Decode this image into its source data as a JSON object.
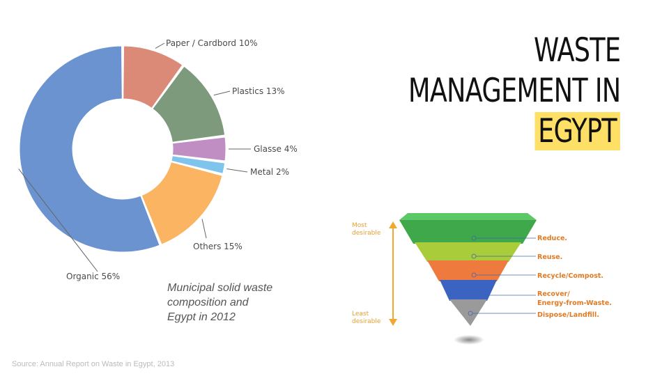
{
  "title": {
    "line1": "WASTE",
    "line2": "MANAGEMENT IN",
    "line3": "EGYPT",
    "highlight_color": "#ffe066"
  },
  "caption": {
    "line1": "Municipal solid waste",
    "line2": "composition and",
    "line3": "Egypt in 2012"
  },
  "source": "Source: Annual Report on Waste in Egypt, 2013",
  "chart_data": {
    "type": "pie",
    "donut": true,
    "slices": [
      {
        "label": "Paper / Cardbord 10%",
        "value": 10,
        "color": "#db8a78"
      },
      {
        "label": "Plastics 13%",
        "value": 13,
        "color": "#7d9b7c"
      },
      {
        "label": "Glasse 4%",
        "value": 4,
        "color": "#c08ec2"
      },
      {
        "label": "Metal 2%",
        "value": 2,
        "color": "#7fc4ec"
      },
      {
        "label": "Others 15%",
        "value": 15,
        "color": "#fbb462"
      },
      {
        "label": "Organic 56%",
        "value": 56,
        "color": "#6a93d0"
      }
    ]
  },
  "hierarchy": {
    "top_label_1": "Most",
    "top_label_2": "desirable",
    "bottom_label_1": "Least",
    "bottom_label_2": "desirable",
    "tiers": [
      {
        "label": "Reduce.",
        "color": "#3fa84a"
      },
      {
        "label": "Reuse.",
        "color": "#a9cc3a"
      },
      {
        "label": "Recycle/Compost.",
        "color": "#ee7a3d"
      },
      {
        "label_1": "Recover/",
        "label_2": "Energy-from-Waste.",
        "color": "#3a63c2"
      },
      {
        "label": "Dispose/Landfill.",
        "color": "#9a9a9a"
      }
    ]
  }
}
